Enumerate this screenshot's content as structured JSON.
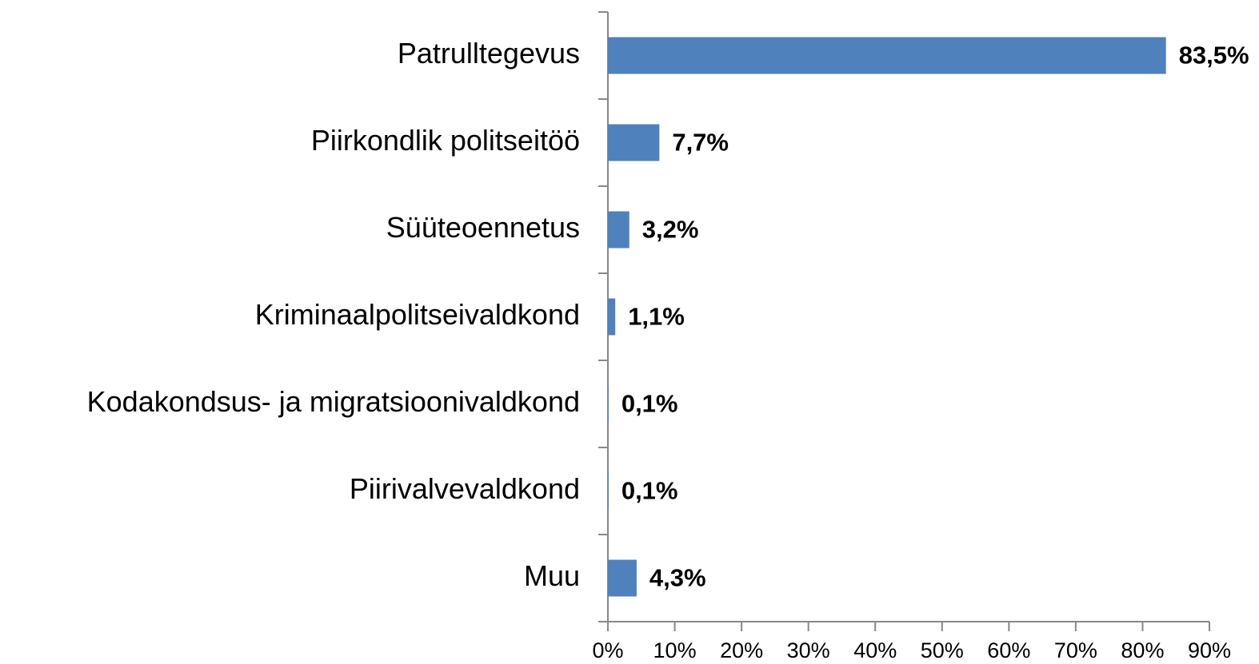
{
  "chart_data": {
    "type": "bar",
    "orientation": "horizontal",
    "categories": [
      "Patrulltegevus",
      "Piirkondlik politseitöö",
      "Süüteoennetus",
      "Kriminaalpolitseivaldkond",
      "Kodakondsus- ja migratsioonivaldkond",
      "Piirivalvevaldkond",
      "Muu"
    ],
    "values": [
      83.5,
      7.7,
      3.2,
      1.1,
      0.1,
      0.1,
      4.3
    ],
    "value_labels": [
      "83,5%",
      "7,7%",
      "3,2%",
      "1,1%",
      "0,1%",
      "0,1%",
      "4,3%"
    ],
    "color": "#4f81bd",
    "xlim": [
      0,
      90
    ],
    "xticks": [
      {
        "value": 0,
        "label": "0%"
      },
      {
        "value": 10,
        "label": "10%"
      },
      {
        "value": 20,
        "label": "20%"
      },
      {
        "value": 30,
        "label": "30%"
      },
      {
        "value": 40,
        "label": "40%"
      },
      {
        "value": 50,
        "label": "50%"
      },
      {
        "value": 60,
        "label": "60%"
      },
      {
        "value": 70,
        "label": "70%"
      },
      {
        "value": 80,
        "label": "80%"
      },
      {
        "value": 90,
        "label": "90%"
      }
    ],
    "grid": false
  }
}
